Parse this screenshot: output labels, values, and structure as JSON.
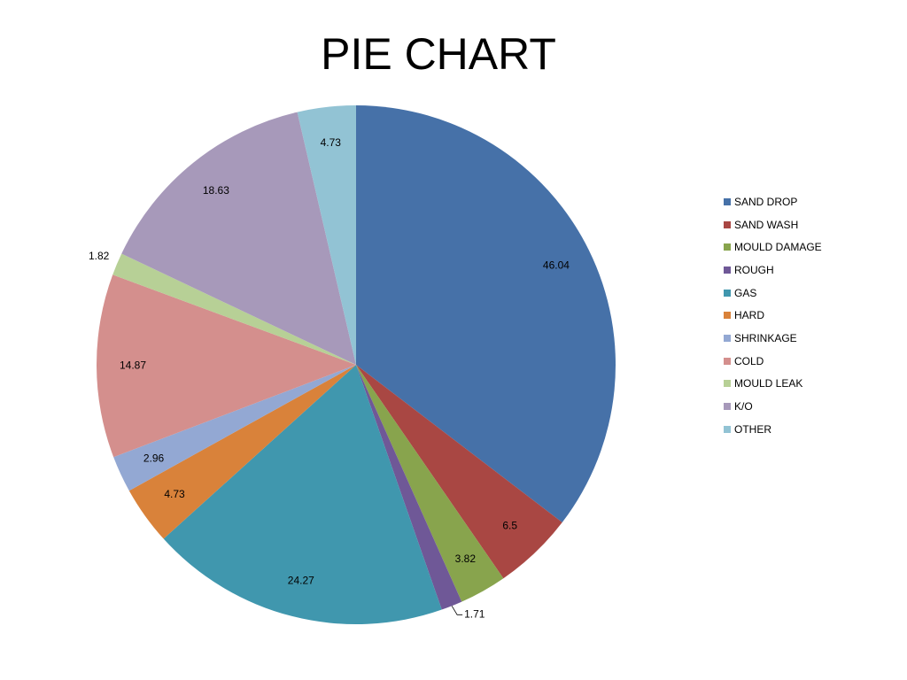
{
  "chart_data": {
    "type": "pie",
    "title": "PIE CHART",
    "legend_position": "right",
    "categories": [
      "SAND DROP",
      "SAND WASH",
      "MOULD DAMAGE",
      "ROUGH",
      "GAS",
      "HARD",
      "SHRINKAGE",
      "COLD",
      "MOULD LEAK",
      "K/O",
      "OTHER"
    ],
    "values": [
      46.04,
      6.5,
      3.82,
      1.71,
      24.27,
      4.73,
      2.96,
      14.87,
      1.82,
      18.63,
      4.73
    ],
    "labels": [
      "46.04",
      "6.5",
      "3.82",
      "1.71",
      "24.27",
      "4.73",
      "2.96",
      "14.87",
      "1.82",
      "18.63",
      "4.73"
    ],
    "colors": [
      "#4671A8",
      "#A94743",
      "#88A44D",
      "#6F5897",
      "#4097AE",
      "#D9823A",
      "#93A8D3",
      "#D48F8D",
      "#B7D096",
      "#A799BA",
      "#92C3D4"
    ]
  }
}
